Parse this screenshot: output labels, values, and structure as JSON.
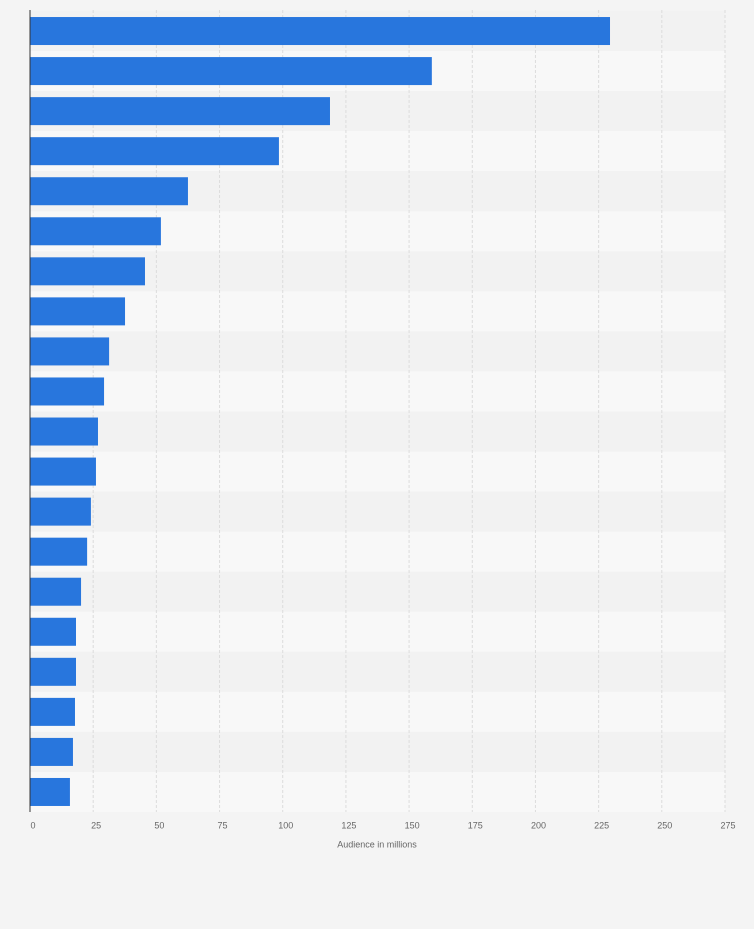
{
  "chart_data": {
    "type": "bar",
    "orientation": "horizontal",
    "x_label": "Audience in millions",
    "categories": [
      null,
      null,
      null,
      null,
      null,
      null,
      null,
      null,
      null,
      null,
      null,
      null,
      null,
      null,
      null,
      null,
      null,
      null,
      null,
      null
    ],
    "values": [
      229.5,
      159,
      118.7,
      98.5,
      62.5,
      51.8,
      45.5,
      37.6,
      31.3,
      29.3,
      26.9,
      26.1,
      24.1,
      22.6,
      20.2,
      18.2,
      18.2,
      17.8,
      17,
      15.8
    ],
    "color": "#2876dd",
    "xlim": [
      0,
      275
    ],
    "xticks": [
      0,
      25,
      50,
      75,
      100,
      125,
      150,
      175,
      200,
      225,
      250,
      275
    ],
    "grid": true
  }
}
